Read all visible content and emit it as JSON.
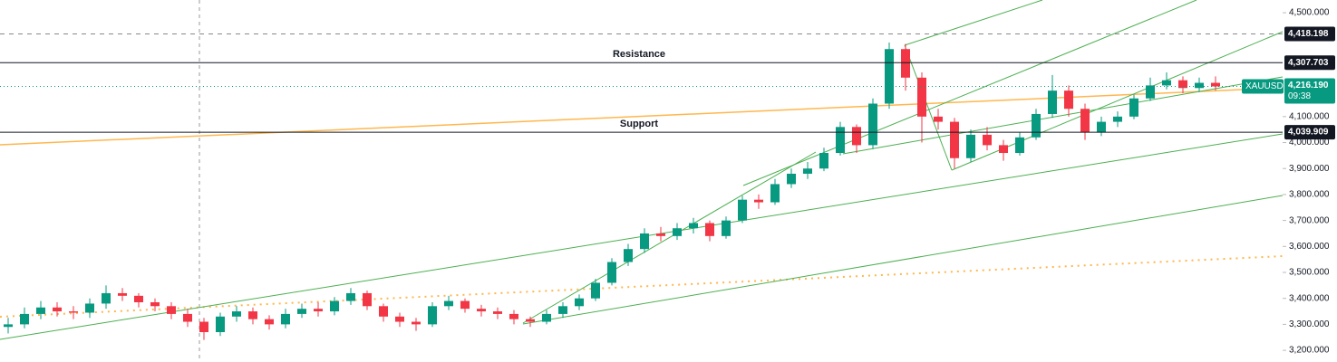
{
  "chart_data": {
    "type": "candlestick",
    "symbol": "XAUUSD",
    "countdown": "09:38",
    "up_color": "#089981",
    "down_color": "#f23645",
    "ylim": [
      3155,
      4549
    ],
    "yticks": [
      {
        "value": 3200,
        "label": "3,200.000"
      },
      {
        "value": 3300,
        "label": "3,300.000"
      },
      {
        "value": 3400,
        "label": "3,400.000"
      },
      {
        "value": 3500,
        "label": "3,500.000"
      },
      {
        "value": 3600,
        "label": "3,600.000"
      },
      {
        "value": 3700,
        "label": "3,700.000"
      },
      {
        "value": 3800,
        "label": "3,800.000"
      },
      {
        "value": 3900,
        "label": "3,900.000"
      },
      {
        "value": 4000,
        "label": "4,000.000"
      },
      {
        "value": 4100,
        "label": "4,100.000"
      },
      {
        "value": 4500,
        "label": "4,500.000"
      }
    ],
    "open": [
      3290,
      3300,
      3340,
      3365,
      3350,
      3345,
      3380,
      3420,
      3410,
      3385,
      3370,
      3340,
      3310,
      3270,
      3330,
      3350,
      3320,
      3300,
      3340,
      3360,
      3350,
      3390,
      3420,
      3370,
      3330,
      3310,
      3300,
      3370,
      3390,
      3360,
      3350,
      3340,
      3320,
      3310,
      3340,
      3370,
      3400,
      3460,
      3540,
      3590,
      3650,
      3640,
      3670,
      3690,
      3640,
      3700,
      3780,
      3770,
      3840,
      3880,
      3900,
      3960,
      4060,
      3990,
      4150,
      4360,
      4250,
      4100,
      4080,
      3940,
      4030,
      3990,
      3960,
      4020,
      4110,
      4200,
      4130,
      4040,
      4080,
      4100,
      4170,
      4220,
      4240,
      4210,
      4230
    ],
    "high": [
      3325,
      3365,
      3390,
      3385,
      3370,
      3400,
      3450,
      3440,
      3420,
      3400,
      3385,
      3360,
      3325,
      3345,
      3370,
      3365,
      3335,
      3360,
      3380,
      3385,
      3405,
      3440,
      3430,
      3380,
      3345,
      3325,
      3385,
      3410,
      3400,
      3375,
      3365,
      3355,
      3330,
      3355,
      3385,
      3415,
      3475,
      3555,
      3610,
      3670,
      3675,
      3690,
      3710,
      3700,
      3715,
      3795,
      3800,
      3860,
      3900,
      3925,
      3980,
      4080,
      4070,
      4170,
      4385,
      4380,
      4270,
      4130,
      4095,
      4050,
      4060,
      4010,
      4040,
      4130,
      4260,
      4220,
      4150,
      4100,
      4120,
      4185,
      4250,
      4270,
      4255,
      4250,
      4255
    ],
    "low": [
      3265,
      3285,
      3320,
      3330,
      3320,
      3325,
      3360,
      3390,
      3365,
      3350,
      3320,
      3290,
      3240,
      3255,
      3310,
      3300,
      3280,
      3285,
      3325,
      3330,
      3335,
      3375,
      3355,
      3310,
      3290,
      3275,
      3290,
      3355,
      3345,
      3330,
      3320,
      3300,
      3290,
      3300,
      3325,
      3355,
      3390,
      3450,
      3525,
      3575,
      3620,
      3625,
      3650,
      3620,
      3630,
      3690,
      3745,
      3760,
      3825,
      3860,
      3890,
      3950,
      3960,
      3975,
      4130,
      4200,
      4000,
      4050,
      3900,
      3925,
      3970,
      3930,
      3950,
      4010,
      4095,
      4100,
      4010,
      4025,
      4060,
      4090,
      4160,
      4205,
      4190,
      4195,
      4200
    ],
    "close": [
      3300,
      3340,
      3365,
      3350,
      3345,
      3380,
      3420,
      3410,
      3385,
      3370,
      3340,
      3310,
      3270,
      3330,
      3350,
      3320,
      3300,
      3340,
      3360,
      3350,
      3390,
      3420,
      3370,
      3330,
      3310,
      3300,
      3370,
      3390,
      3360,
      3350,
      3340,
      3320,
      3310,
      3340,
      3370,
      3400,
      3460,
      3540,
      3590,
      3650,
      3640,
      3670,
      3690,
      3640,
      3700,
      3780,
      3770,
      3840,
      3880,
      3900,
      3960,
      4060,
      3990,
      4150,
      4360,
      4250,
      4100,
      4080,
      3940,
      4030,
      3990,
      3960,
      4020,
      4110,
      4200,
      4130,
      4040,
      4080,
      4100,
      4170,
      4220,
      4240,
      4210,
      4230,
      4216.19
    ],
    "levels": [
      {
        "value": 4418.198,
        "label": "4,418.198"
      },
      {
        "value": 4307.703,
        "label": "4,307.703"
      },
      {
        "value": 4039.909,
        "label": "4,039.909"
      }
    ],
    "last_price": {
      "value": 4216.19,
      "label": "4,216.190"
    },
    "annotations": [
      {
        "text": "Resistance",
        "color": "#2962ff"
      },
      {
        "text": "Support",
        "color": "#f23645"
      }
    ]
  }
}
